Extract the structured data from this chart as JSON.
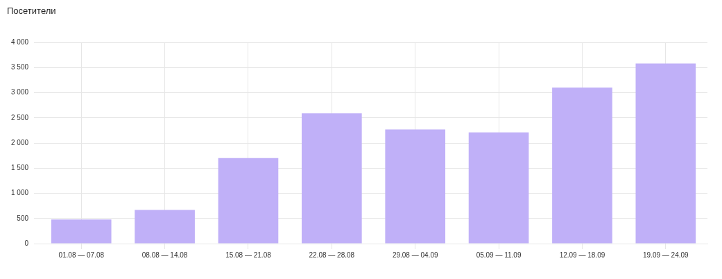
{
  "chart_data": {
    "type": "bar",
    "title": "Посетители",
    "categories": [
      "01.08 — 07.08",
      "08.08 — 14.08",
      "15.08 — 21.08",
      "22.08 — 28.08",
      "29.08 — 04.09",
      "05.09 — 11.09",
      "12.09 — 18.09",
      "19.09 — 24.09"
    ],
    "values": [
      480,
      670,
      1700,
      2590,
      2270,
      2210,
      3100,
      3580
    ],
    "color": "#c0b0f8",
    "ylim": [
      0,
      4000
    ],
    "yticks": [
      0,
      500,
      {
        "value": 1000,
        "label": "1 000"
      },
      {
        "value": 1500,
        "label": "1 500"
      },
      {
        "value": 2000,
        "label": "2 000"
      },
      {
        "value": 2500,
        "label": "2 500"
      },
      {
        "value": 3000,
        "label": "3 000"
      },
      {
        "value": 3500,
        "label": "3 500"
      },
      {
        "value": 4000,
        "label": "4 000"
      }
    ],
    "grid": true,
    "legend": false
  }
}
